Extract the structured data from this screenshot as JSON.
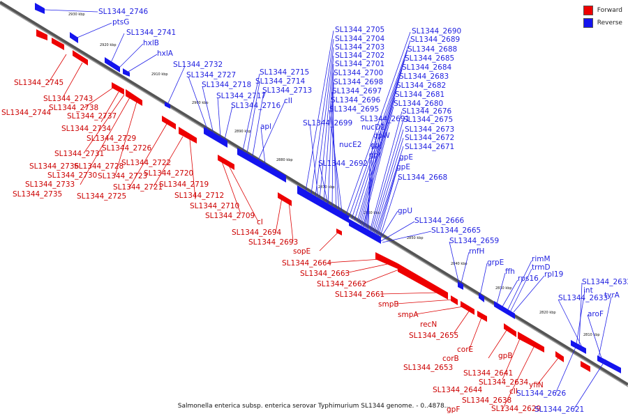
{
  "legend": {
    "forward": "Forward",
    "reverse": "Reverse"
  },
  "colors": {
    "forward": "#ee0000",
    "reverse": "#1414ee",
    "axis": "#555555"
  },
  "caption": "Salmonella enterica subsp. enterica serovar Typhimurium SL1344 genome. - 0..4878...",
  "ticks": [
    "2930 kbp",
    "2920 kbp",
    "2910 kbp",
    "2900 kbp",
    "2890 kbp",
    "2880 kbp",
    "2870 kbp",
    "2860 kbp",
    "2850 kbp",
    "2840 kbp",
    "2830 kbp",
    "2820 kbp",
    "2810 kbp"
  ],
  "forward_labels": [
    "SL1344_2745",
    "SL1344_2743",
    "SL1344_2744",
    "SL1344_2738",
    "SL1344_2737",
    "SL1344_2734",
    "SL1344_2729",
    "SL1344_2726",
    "SL1344_2731",
    "SL1344_2736",
    "SL1344_2728",
    "SL1344_2722",
    "SL1344_2730",
    "SL1344_2723",
    "SL1344_2720",
    "SL1344_2733",
    "SL1344_2721",
    "SL1344_2719",
    "SL1344_2735",
    "SL1344_2725",
    "SL1344_2712",
    "SL1344_2710",
    "SL1344_2709",
    "cI",
    "SL1344_2694",
    "SL1344_2693",
    "sopE",
    "SL1344_2664",
    "SL1344_2663",
    "SL1344_2662",
    "SL1344_2661",
    "smpB",
    "smpA",
    "recN",
    "SL1344_2655",
    "corE",
    "corB",
    "gpB",
    "SL1344_2653",
    "SL1344_2641",
    "SL1344_2634",
    "SL1344_2644",
    "cII",
    "SL1344_2638",
    "gpF",
    "SL1344_2629",
    "yfiN"
  ],
  "reverse_labels": [
    "SL1344_2746",
    "ptsG",
    "SL1344_2741",
    "hxlB",
    "hxlA",
    "SL1344_2732",
    "SL1344_2727",
    "SL1344_2718",
    "SL1344_2717",
    "SL1344_2716",
    "SL1344_2715",
    "SL1344_2714",
    "SL1344_2713",
    "cII",
    "apl",
    "SL1344_2705",
    "SL1344_2704",
    "SL1344_2703",
    "SL1344_2702",
    "SL1344_2701",
    "SL1344_2700",
    "SL1344_2698",
    "SL1344_2697",
    "SL1344_2696",
    "SL1344_2695",
    "SL1344_2699",
    "SL1344_2692",
    "SL1344_2691",
    "nucD2",
    "gpW",
    "nucE2",
    "gpJ",
    "gpI",
    "gpE",
    "gpE",
    "SL1344_2668",
    "SL1344_2690",
    "SL1344_2689",
    "SL1344_2688",
    "SL1344_2685",
    "SL1344_2684",
    "SL1344_2683",
    "SL1344_2682",
    "SL1344_2681",
    "SL1344_2680",
    "SL1344_2676",
    "SL1344_2675",
    "SL1344_2673",
    "SL1344_2672",
    "SL1344_2671",
    "gpU",
    "SL1344_2666",
    "SL1344_2665",
    "SL1344_2659",
    "rnfH",
    "grpE",
    "ffh",
    "rps16",
    "rimM",
    "trmD",
    "rpl19",
    "int",
    "SL1344_2632",
    "SL1344_2633",
    "tyrA",
    "aroF",
    "SL1344_2626",
    "SL1344_2621"
  ]
}
